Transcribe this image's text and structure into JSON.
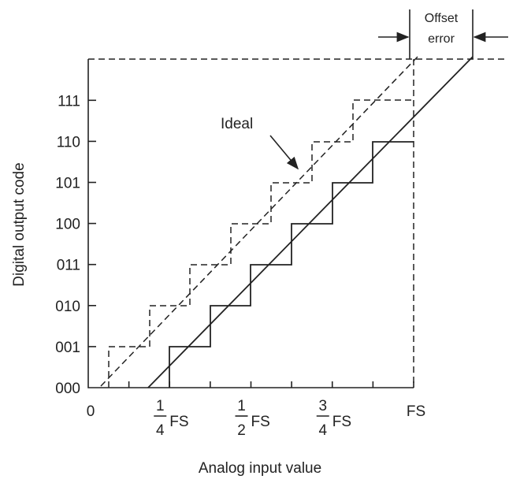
{
  "annotations": {
    "offset_error": [
      "Offset",
      "error"
    ],
    "ideal": "Ideal"
  },
  "y_axis": {
    "title": "Digital output code",
    "codes": [
      "000",
      "001",
      "010",
      "011",
      "100",
      "101",
      "110",
      "111"
    ]
  },
  "x_axis": {
    "title": "Analog input value",
    "zero": "0",
    "fractions": [
      {
        "numerator": "1",
        "denominator": "4",
        "unit": "FS"
      },
      {
        "numerator": "1",
        "denominator": "2",
        "unit": "FS"
      },
      {
        "numerator": "3",
        "denominator": "4",
        "unit": "FS"
      }
    ],
    "full_scale": "FS"
  }
}
